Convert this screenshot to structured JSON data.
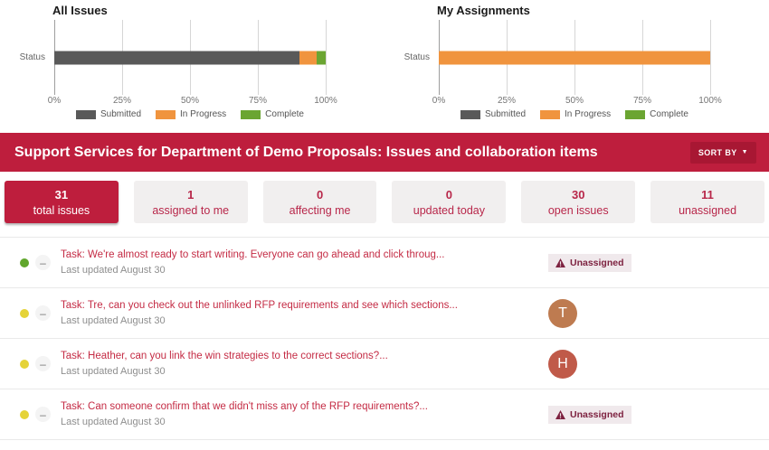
{
  "chart_data": [
    {
      "type": "bar",
      "orientation": "horizontal",
      "title": "All Issues",
      "categories": [
        "Status"
      ],
      "series": [
        {
          "name": "Submitted",
          "color": "#595959",
          "values": [
            90.3
          ]
        },
        {
          "name": "In Progress",
          "color": "#f0943e",
          "values": [
            6.5
          ]
        },
        {
          "name": "Complete",
          "color": "#6ba532",
          "values": [
            3.2
          ]
        }
      ],
      "xlim": [
        0,
        100
      ],
      "x_ticks": [
        "0%",
        "25%",
        "50%",
        "75%",
        "100%"
      ],
      "grid": true,
      "legend_position": "bottom"
    },
    {
      "type": "bar",
      "orientation": "horizontal",
      "title": "My Assignments",
      "categories": [
        "Status"
      ],
      "series": [
        {
          "name": "Submitted",
          "color": "#595959",
          "values": [
            0
          ]
        },
        {
          "name": "In Progress",
          "color": "#f0943e",
          "values": [
            100
          ]
        },
        {
          "name": "Complete",
          "color": "#6ba532",
          "values": [
            0
          ]
        }
      ],
      "xlim": [
        0,
        100
      ],
      "x_ticks": [
        "0%",
        "25%",
        "50%",
        "75%",
        "100%"
      ],
      "grid": true,
      "legend_position": "bottom"
    }
  ],
  "banner": {
    "title": "Support Services for Department of Demo Proposals: Issues and collaboration items",
    "sort_button": "SORT BY",
    "background": "#be1e3d"
  },
  "stats": [
    {
      "value": "31",
      "label": "total issues",
      "active": true
    },
    {
      "value": "1",
      "label": "assigned to me",
      "active": false
    },
    {
      "value": "0",
      "label": "affecting me",
      "active": false
    },
    {
      "value": "0",
      "label": "updated today",
      "active": false
    },
    {
      "value": "30",
      "label": "open issues",
      "active": false
    },
    {
      "value": "11",
      "label": "unassigned",
      "active": false
    }
  ],
  "tasks": [
    {
      "status_color": "#60a62c",
      "title": "Task: We're almost ready to start writing. Everyone can go ahead and click throug...",
      "updated": "Last updated August 30",
      "assignee": {
        "type": "badge",
        "label": "Unassigned"
      }
    },
    {
      "status_color": "#e5d338",
      "title": "Task: Tre, can you check out the unlinked RFP requirements and see which sections...",
      "updated": "Last updated August 30",
      "assignee": {
        "type": "avatar",
        "initial": "T",
        "color": "#be7b50"
      }
    },
    {
      "status_color": "#e5d338",
      "title": "Task: Heather, can you link the win strategies to the correct sections?...",
      "updated": "Last updated August 30",
      "assignee": {
        "type": "avatar",
        "initial": "H",
        "color": "#c05a49"
      }
    },
    {
      "status_color": "#e5d338",
      "title": "Task: Can someone confirm that we didn't miss any of the RFP requirements?...",
      "updated": "Last updated August 30",
      "assignee": {
        "type": "badge",
        "label": "Unassigned"
      }
    }
  ],
  "icons": {
    "minus": "–",
    "caret_down": "▼"
  },
  "colors": {
    "banner_red": "#be1e3d",
    "link_red": "#c42b44",
    "card_text_red": "#b8274a",
    "badge_bg": "#f0e9ec",
    "badge_text": "#7d2240",
    "status_green": "#60a62c",
    "status_yellow": "#e5d338",
    "bar_gray": "#595959",
    "bar_orange": "#f0943e",
    "bar_green": "#6ba532"
  }
}
